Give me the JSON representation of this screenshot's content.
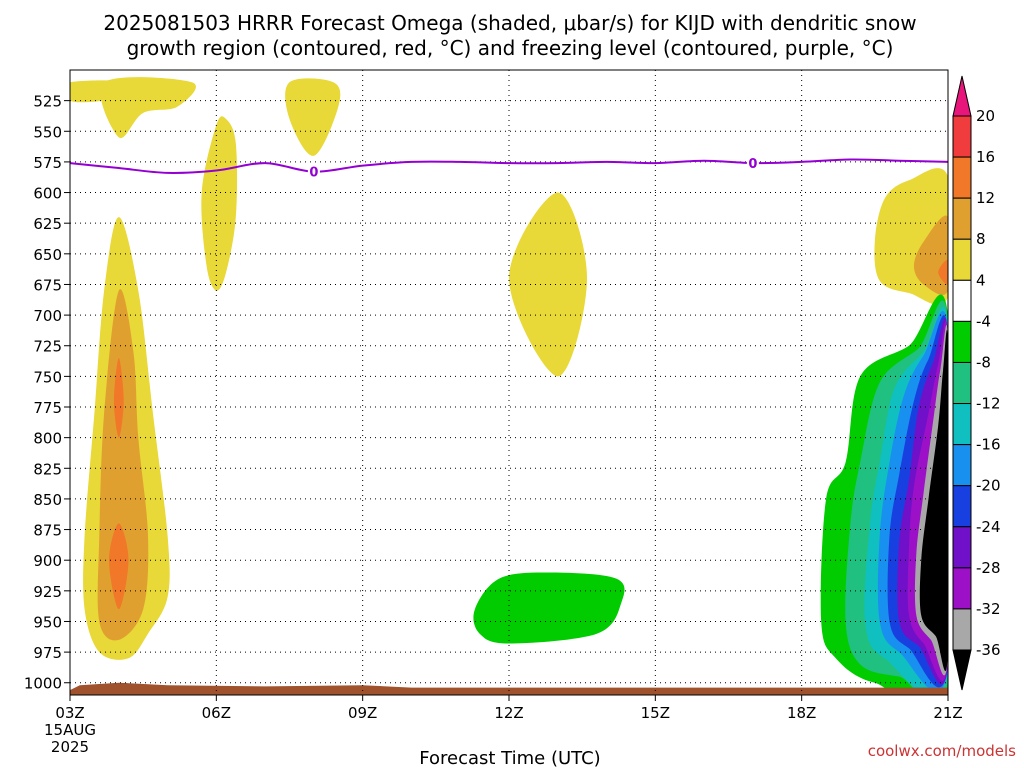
{
  "chart_data": {
    "type": "contour",
    "title_line1": "2025081503 HRRR Forecast Omega (shaded, μbar/s) for KIJD with dendritic snow",
    "title_line2": "growth region (contoured, red, °C) and freezing level (contoured, purple, °C)",
    "xlabel": "Forecast Time (UTC)",
    "date_label_1": "15AUG",
    "date_label_2": "2025",
    "credit": "coolwx.com/models",
    "x_ticks": [
      "03Z",
      "06Z",
      "09Z",
      "12Z",
      "15Z",
      "18Z",
      "21Z"
    ],
    "x_range_hours": [
      3,
      21
    ],
    "y_ticks": [
      525,
      550,
      575,
      600,
      625,
      650,
      675,
      700,
      725,
      750,
      775,
      800,
      825,
      850,
      875,
      900,
      925,
      950,
      975,
      1000
    ],
    "ylim": [
      1010,
      500
    ],
    "colorbar": {
      "labels": [
        "20",
        "16",
        "12",
        "8",
        "4",
        "-4",
        "-8",
        "-12",
        "-16",
        "-20",
        "-24",
        "-28",
        "-32",
        "-36"
      ],
      "colors": [
        "#e8157a",
        "#f03c3c",
        "#f07828",
        "#e0a030",
        "#e8d838",
        "#ffffff",
        "#00cc00",
        "#20c080",
        "#10c0c0",
        "#1890f0",
        "#1840e0",
        "#7010c8",
        "#9c10c8",
        "#a8a8a8",
        "#000000"
      ]
    },
    "freezing_level": {
      "label": "0",
      "points": [
        [
          3,
          576
        ],
        [
          4,
          580
        ],
        [
          5,
          584
        ],
        [
          6,
          582
        ],
        [
          7,
          576
        ],
        [
          8,
          583
        ],
        [
          9,
          578
        ],
        [
          10,
          575
        ],
        [
          11,
          575
        ],
        [
          12,
          576
        ],
        [
          13,
          576
        ],
        [
          14,
          575
        ],
        [
          15,
          576
        ],
        [
          16,
          574
        ],
        [
          17,
          576
        ],
        [
          18,
          575
        ],
        [
          19,
          573
        ],
        [
          20,
          574
        ],
        [
          21,
          575
        ]
      ]
    },
    "omega_regions": [
      {
        "value_class": "4 to 8",
        "color": "#e8d838",
        "points": [
          [
            3,
            525
          ],
          [
            3.7,
            525
          ],
          [
            4.2,
            520
          ],
          [
            4.6,
            510
          ],
          [
            3,
            510
          ]
        ]
      },
      {
        "value_class": "4 to 8",
        "color": "#e8d838",
        "points": [
          [
            3.7,
            510
          ],
          [
            5.5,
            510
          ],
          [
            5.2,
            530
          ],
          [
            4.5,
            535
          ],
          [
            4,
            555
          ]
        ]
      },
      {
        "value_class": "4 to 8",
        "color": "#e8d838",
        "points": [
          [
            7.5,
            510
          ],
          [
            8.4,
            510
          ],
          [
            8.5,
            530
          ],
          [
            8.0,
            570
          ],
          [
            7.5,
            540
          ]
        ]
      },
      {
        "value_class": "4 to 8",
        "color": "#e8d838",
        "points": [
          [
            6.0,
            545
          ],
          [
            6.2,
            540
          ],
          [
            6.4,
            560
          ],
          [
            6.4,
            620
          ],
          [
            6.2,
            665
          ],
          [
            6.0,
            680
          ],
          [
            5.8,
            660
          ],
          [
            5.7,
            600
          ]
        ]
      },
      {
        "value_class": "4 to 8",
        "color": "#e8d838",
        "points": [
          [
            4.0,
            620
          ],
          [
            4.4,
            680
          ],
          [
            4.7,
            780
          ],
          [
            5.0,
            880
          ],
          [
            5.0,
            930
          ],
          [
            4.6,
            960
          ],
          [
            4.2,
            980
          ],
          [
            3.6,
            975
          ],
          [
            3.3,
            940
          ],
          [
            3.3,
            880
          ],
          [
            3.5,
            780
          ],
          [
            3.7,
            680
          ]
        ]
      },
      {
        "value_class": "8 to 12",
        "color": "#e0a030",
        "points": [
          [
            4.0,
            680
          ],
          [
            4.3,
            730
          ],
          [
            4.4,
            800
          ],
          [
            4.6,
            880
          ],
          [
            4.5,
            940
          ],
          [
            4.0,
            965
          ],
          [
            3.6,
            950
          ],
          [
            3.6,
            880
          ],
          [
            3.7,
            780
          ]
        ]
      },
      {
        "value_class": "12 to 16",
        "color": "#f07828",
        "points": [
          [
            4.0,
            735
          ],
          [
            4.1,
            770
          ],
          [
            4.0,
            800
          ],
          [
            3.9,
            770
          ]
        ]
      },
      {
        "value_class": "12 to 16",
        "color": "#f07828",
        "points": [
          [
            4.0,
            870
          ],
          [
            4.2,
            900
          ],
          [
            4.0,
            940
          ],
          [
            3.8,
            900
          ]
        ]
      },
      {
        "value_class": "4 to 8",
        "color": "#e8d838",
        "points": [
          [
            13.0,
            600
          ],
          [
            13.6,
            670
          ],
          [
            13.0,
            750
          ],
          [
            12.0,
            670
          ]
        ]
      },
      {
        "value_class": "4 to 8",
        "color": "#e8d838",
        "points": [
          [
            21,
            587
          ],
          [
            20.2,
            590
          ],
          [
            19.7,
            605
          ],
          [
            19.5,
            640
          ],
          [
            19.6,
            672
          ],
          [
            20.2,
            682
          ],
          [
            21,
            685
          ]
        ]
      },
      {
        "value_class": "8 to 12",
        "color": "#e0a030",
        "points": [
          [
            21,
            620
          ],
          [
            20.5,
            640
          ],
          [
            20.3,
            660
          ],
          [
            20.5,
            675
          ],
          [
            21,
            680
          ]
        ]
      },
      {
        "value_class": "12 to 16",
        "color": "#f07828",
        "points": [
          [
            21,
            655
          ],
          [
            20.8,
            665
          ],
          [
            21,
            675
          ]
        ]
      },
      {
        "value_class": "-4 to -8",
        "color": "#00cc00",
        "points": [
          [
            12.8,
            910
          ],
          [
            14.2,
            915
          ],
          [
            14.3,
            935
          ],
          [
            13.8,
            960
          ],
          [
            12,
            968
          ],
          [
            11.4,
            960
          ],
          [
            11.3,
            940
          ],
          [
            11.8,
            915
          ]
        ]
      },
      {
        "value_class": "-4 to -8",
        "color": "#00cc00",
        "points": [
          [
            21,
            700
          ],
          [
            20.2,
            725
          ],
          [
            19.2,
            750
          ],
          [
            18.9,
            820
          ],
          [
            18.5,
            850
          ],
          [
            18.4,
            950
          ],
          [
            18.7,
            980
          ],
          [
            19.5,
            1000
          ],
          [
            21,
            1002
          ]
        ]
      },
      {
        "value_class": "-8 to -12",
        "color": "#20c080",
        "points": [
          [
            21,
            705
          ],
          [
            20.4,
            727
          ],
          [
            19.6,
            755
          ],
          [
            19.2,
            820
          ],
          [
            19.0,
            870
          ],
          [
            18.9,
            950
          ],
          [
            19.2,
            985
          ],
          [
            20,
            995
          ],
          [
            21,
            998
          ]
        ]
      },
      {
        "value_class": "-12 to -16",
        "color": "#10c0c0",
        "points": [
          [
            21,
            710
          ],
          [
            20.5,
            730
          ],
          [
            19.9,
            760
          ],
          [
            19.6,
            820
          ],
          [
            19.4,
            870
          ],
          [
            19.3,
            950
          ],
          [
            19.7,
            980
          ],
          [
            21,
            993
          ]
        ]
      },
      {
        "value_class": "-16 to -20",
        "color": "#1890f0",
        "points": [
          [
            21,
            713
          ],
          [
            20.5,
            733
          ],
          [
            20.1,
            765
          ],
          [
            19.8,
            820
          ],
          [
            19.6,
            880
          ],
          [
            19.6,
            950
          ],
          [
            20,
            975
          ],
          [
            21,
            990
          ]
        ]
      },
      {
        "value_class": "-20 to -24",
        "color": "#1840e0",
        "points": [
          [
            21,
            716
          ],
          [
            20.6,
            736
          ],
          [
            20.3,
            770
          ],
          [
            20.0,
            830
          ],
          [
            19.8,
            880
          ],
          [
            19.8,
            950
          ],
          [
            20.2,
            972
          ],
          [
            21,
            987
          ]
        ]
      },
      {
        "value_class": "-24 to -28",
        "color": "#7010c8",
        "points": [
          [
            21,
            718
          ],
          [
            20.7,
            738
          ],
          [
            20.4,
            775
          ],
          [
            20.2,
            835
          ],
          [
            20.0,
            885
          ],
          [
            20.0,
            950
          ],
          [
            20.4,
            970
          ],
          [
            21,
            985
          ]
        ]
      },
      {
        "value_class": "-28 to -32",
        "color": "#9c10c8",
        "points": [
          [
            21,
            720
          ],
          [
            20.8,
            740
          ],
          [
            20.6,
            780
          ],
          [
            20.3,
            840
          ],
          [
            20.2,
            890
          ],
          [
            20.2,
            945
          ],
          [
            20.5,
            968
          ],
          [
            21,
            982
          ]
        ]
      },
      {
        "value_class": "-32 to -36",
        "color": "#a8a8a8",
        "points": [
          [
            21,
            723
          ],
          [
            20.85,
            743
          ],
          [
            20.7,
            785
          ],
          [
            20.5,
            845
          ],
          [
            20.35,
            895
          ],
          [
            20.35,
            945
          ],
          [
            20.65,
            965
          ],
          [
            21,
            978
          ]
        ]
      },
      {
        "value_class": "below -36",
        "color": "#000000",
        "points": [
          [
            21,
            727
          ],
          [
            20.9,
            745
          ],
          [
            20.8,
            790
          ],
          [
            20.6,
            850
          ],
          [
            20.45,
            900
          ],
          [
            20.45,
            945
          ],
          [
            20.75,
            962
          ],
          [
            21,
            975
          ]
        ]
      }
    ],
    "terrain_color": "#a0522d"
  }
}
